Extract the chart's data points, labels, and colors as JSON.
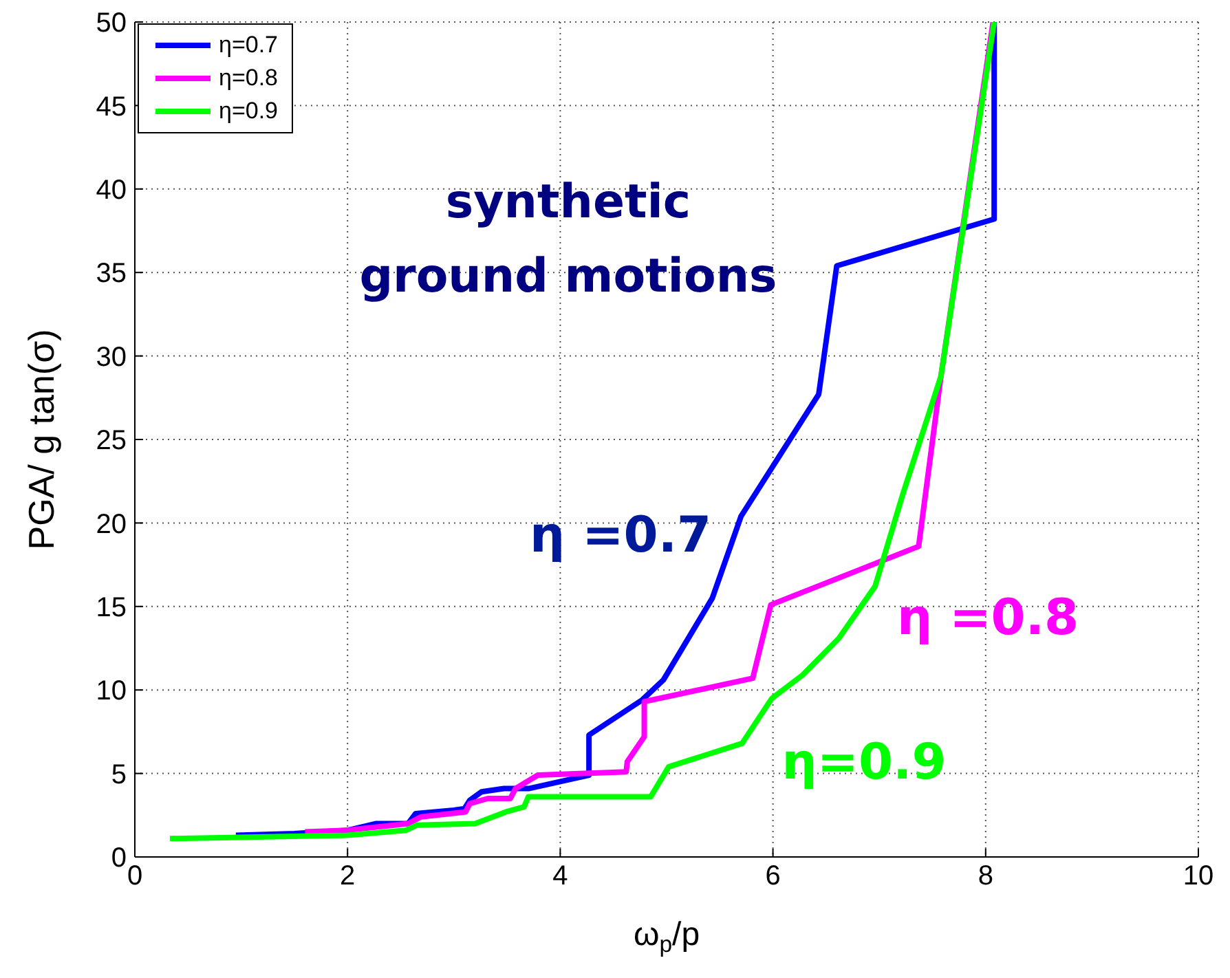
{
  "chart_data": {
    "type": "line",
    "xlabel": "ω$_{p}$/p",
    "ylabel": "PGA/ g tan(σ)",
    "xlim": [
      0,
      10
    ],
    "xticks": [
      0,
      2,
      4,
      6,
      8,
      10
    ],
    "ylim": [
      0,
      50
    ],
    "yticks": [
      0,
      5,
      10,
      15,
      20,
      25,
      30,
      35,
      40,
      45,
      50
    ],
    "grid": true,
    "legend": "top left",
    "marker": "none",
    "line_style": "solid",
    "series": [
      {
        "name": "η=0.7",
        "color": "#0000ff",
        "x": [
          0.95,
          1.5,
          2.0,
          2.27,
          2.57,
          2.64,
          3.0,
          3.1,
          3.15,
          3.26,
          3.47,
          3.71,
          4.27,
          4.27,
          4.77,
          4.97,
          5.43,
          5.7,
          6.43,
          6.6,
          8.08,
          8.08
        ],
        "values": [
          1.3,
          1.4,
          1.6,
          2.0,
          2.0,
          2.6,
          2.8,
          2.9,
          3.4,
          3.9,
          4.1,
          4.1,
          4.9,
          7.3,
          9.4,
          10.6,
          15.5,
          20.4,
          27.7,
          35.4,
          38.2,
          50
        ]
      },
      {
        "name": "η=0.8",
        "color": "#ff00ff",
        "x": [
          1.6,
          2.0,
          2.57,
          2.69,
          3.11,
          3.15,
          3.32,
          3.53,
          3.58,
          3.79,
          4.62,
          4.63,
          4.79,
          4.79,
          5.81,
          5.98,
          7.37,
          7.58,
          8.07
        ],
        "values": [
          1.5,
          1.6,
          2.0,
          2.4,
          2.7,
          3.2,
          3.5,
          3.5,
          4.1,
          4.9,
          5.1,
          5.7,
          7.2,
          9.3,
          10.7,
          15.1,
          18.6,
          28.8,
          50
        ]
      },
      {
        "name": "η=0.9",
        "color": "#00ff00",
        "x": [
          0.33,
          2.0,
          2.55,
          2.65,
          3.2,
          3.49,
          3.66,
          3.7,
          4.85,
          5.02,
          5.71,
          5.99,
          6.28,
          6.62,
          6.96,
          7.22,
          7.58,
          8.08
        ],
        "values": [
          1.1,
          1.3,
          1.6,
          1.9,
          2.0,
          2.7,
          3.0,
          3.6,
          3.6,
          5.4,
          6.8,
          9.5,
          10.9,
          13.1,
          16.2,
          21.7,
          28.8,
          50
        ]
      }
    ],
    "annotations": [
      "synthetic ground motions",
      "η =0.7",
      "η =0.8",
      "η=0.9"
    ]
  }
}
